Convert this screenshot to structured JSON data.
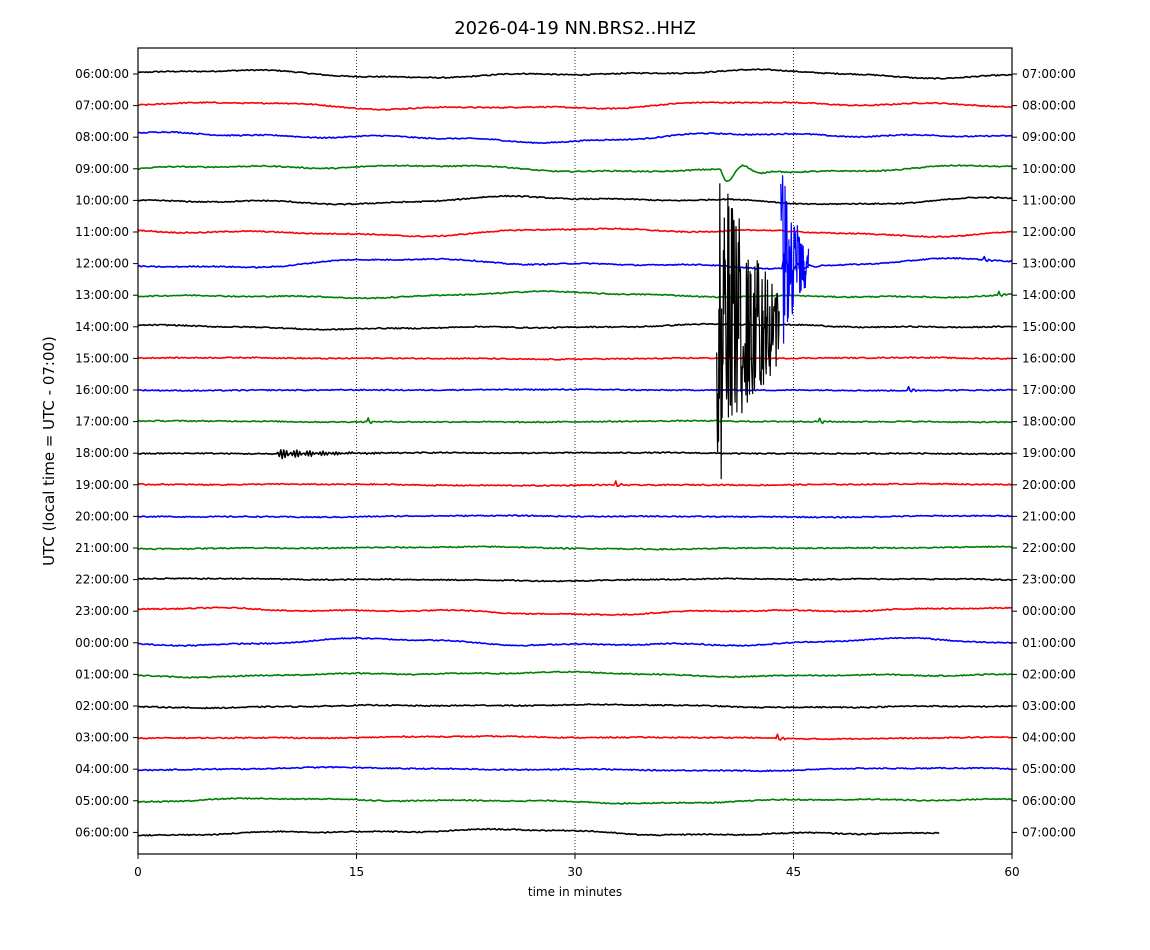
{
  "chart_data": {
    "type": "line",
    "title": "2026-04-19 NN.BRS2..HHZ",
    "xlabel": "time in minutes",
    "ylabel": "UTC (local time = UTC - 07:00)",
    "xlim": [
      0,
      60
    ],
    "x_ticks": [
      0,
      15,
      30,
      45,
      60
    ],
    "x_tick_labels": [
      "0",
      "15",
      "30",
      "45",
      "60"
    ],
    "x_gridlines": [
      15,
      30,
      45
    ],
    "trace_colors": [
      "#000000",
      "#ff0000",
      "#0000ff",
      "#008000"
    ],
    "rows": [
      {
        "left": "06:00:00",
        "right": "07:00:00"
      },
      {
        "left": "07:00:00",
        "right": "08:00:00"
      },
      {
        "left": "08:00:00",
        "right": "09:00:00"
      },
      {
        "left": "09:00:00",
        "right": "10:00:00"
      },
      {
        "left": "10:00:00",
        "right": "11:00:00"
      },
      {
        "left": "11:00:00",
        "right": "12:00:00"
      },
      {
        "left": "12:00:00",
        "right": "13:00:00"
      },
      {
        "left": "13:00:00",
        "right": "14:00:00"
      },
      {
        "left": "14:00:00",
        "right": "15:00:00"
      },
      {
        "left": "15:00:00",
        "right": "16:00:00"
      },
      {
        "left": "16:00:00",
        "right": "17:00:00"
      },
      {
        "left": "17:00:00",
        "right": "18:00:00"
      },
      {
        "left": "18:00:00",
        "right": "19:00:00"
      },
      {
        "left": "19:00:00",
        "right": "20:00:00"
      },
      {
        "left": "20:00:00",
        "right": "21:00:00"
      },
      {
        "left": "21:00:00",
        "right": "22:00:00"
      },
      {
        "left": "22:00:00",
        "right": "23:00:00"
      },
      {
        "left": "23:00:00",
        "right": "00:00:00"
      },
      {
        "left": "00:00:00",
        "right": "01:00:00"
      },
      {
        "left": "01:00:00",
        "right": "02:00:00"
      },
      {
        "left": "02:00:00",
        "right": "03:00:00"
      },
      {
        "left": "03:00:00",
        "right": "04:00:00"
      },
      {
        "left": "04:00:00",
        "right": "05:00:00"
      },
      {
        "left": "05:00:00",
        "right": "06:00:00"
      },
      {
        "left": "06:00:00",
        "right": "07:00:00"
      }
    ],
    "last_row_end_minute": 55,
    "events": [
      {
        "row": 3,
        "minute": 40.0,
        "kind": "teleseism_start"
      },
      {
        "row": 6,
        "minute": 44.2,
        "kind": "local_event"
      },
      {
        "row": 6,
        "minute": 58.0,
        "kind": "small_event"
      },
      {
        "row": 7,
        "minute": 59.0,
        "kind": "small_event"
      },
      {
        "row": 10,
        "minute": 52.8,
        "kind": "small_event"
      },
      {
        "row": 11,
        "minute": 15.7,
        "kind": "small_event"
      },
      {
        "row": 11,
        "minute": 46.7,
        "kind": "small_event"
      },
      {
        "row": 12,
        "minute": 9.5,
        "kind": "surface_wave_train"
      },
      {
        "row": 13,
        "minute": 32.7,
        "kind": "small_event"
      },
      {
        "row": 21,
        "minute": 43.8,
        "kind": "small_event"
      }
    ]
  }
}
